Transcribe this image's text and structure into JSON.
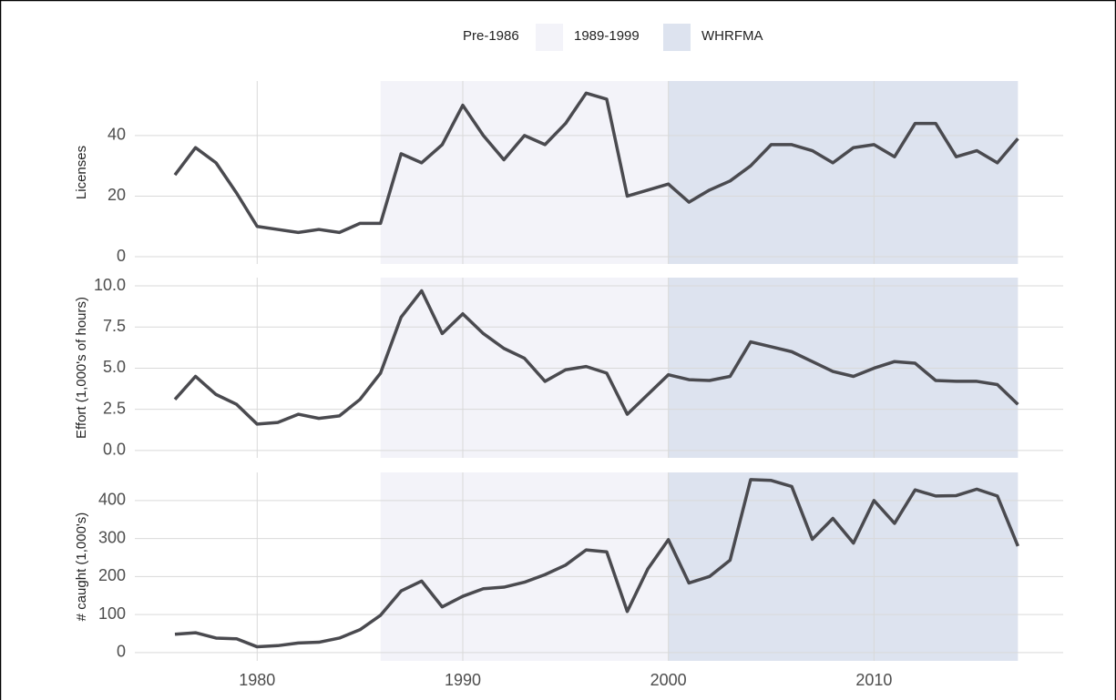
{
  "periods": [
    {
      "name": "Pre-1986",
      "color": "#ffffff",
      "range": [
        1976,
        1986
      ]
    },
    {
      "name": "1989-1999",
      "color": "#f3f3f9",
      "range": [
        1986,
        2000
      ]
    },
    {
      "name": "WHRFMA",
      "color": "#dde3ef",
      "range": [
        2000,
        2017
      ]
    }
  ],
  "chart_data": [
    {
      "type": "line",
      "y_label": "Licenses",
      "color": "#4a4a4f",
      "x": [
        1976,
        1977,
        1978,
        1979,
        1980,
        1981,
        1982,
        1983,
        1984,
        1985,
        1986,
        1987,
        1988,
        1989,
        1990,
        1991,
        1992,
        1993,
        1994,
        1995,
        1996,
        1997,
        1998,
        1999,
        2000,
        2001,
        2002,
        2003,
        2004,
        2005,
        2006,
        2007,
        2008,
        2009,
        2010,
        2011,
        2012,
        2013,
        2014,
        2015,
        2016,
        2017
      ],
      "values": [
        27,
        36,
        31,
        21,
        10,
        9,
        8,
        9,
        8,
        11,
        11,
        34,
        31,
        37,
        50,
        40,
        32,
        40,
        37,
        44,
        54,
        52,
        20,
        22,
        24,
        18,
        22,
        25,
        30,
        37,
        37,
        35,
        31,
        36,
        37,
        33,
        44,
        44,
        33,
        35,
        31,
        39
      ],
      "xlim": [
        1974.05,
        2019.2
      ],
      "xticks": [
        1980,
        1990,
        2000,
        2010
      ],
      "ylim": [
        -2.4,
        58
      ],
      "yticks": [
        0,
        20,
        40
      ],
      "grid": true
    },
    {
      "type": "line",
      "y_label": "Effort (1,000's of hours)",
      "color": "#4a4a4f",
      "x": [
        1976,
        1977,
        1978,
        1979,
        1980,
        1981,
        1982,
        1983,
        1984,
        1985,
        1986,
        1987,
        1988,
        1989,
        1990,
        1991,
        1992,
        1993,
        1994,
        1995,
        1996,
        1997,
        1998,
        1999,
        2000,
        2001,
        2002,
        2003,
        2004,
        2005,
        2006,
        2007,
        2008,
        2009,
        2010,
        2011,
        2012,
        2013,
        2014,
        2015,
        2016,
        2017
      ],
      "values": [
        3.1,
        4.5,
        3.4,
        2.8,
        1.6,
        1.7,
        2.2,
        1.95,
        2.1,
        3.1,
        4.7,
        8.1,
        9.7,
        7.1,
        8.3,
        7.1,
        6.2,
        5.6,
        4.2,
        4.9,
        5.1,
        4.7,
        2.2,
        3.4,
        4.6,
        4.3,
        4.25,
        4.5,
        6.6,
        6.3,
        6.0,
        5.4,
        4.8,
        4.5,
        5.0,
        5.4,
        5.3,
        4.25,
        4.2,
        4.2,
        4.0,
        2.8
      ],
      "xlim": [
        1974.05,
        2019.2
      ],
      "xticks": [
        1980,
        1990,
        2000,
        2010
      ],
      "ylim": [
        -0.45,
        10.5
      ],
      "yticks": [
        {
          "value": 0,
          "label": "0.0"
        },
        {
          "value": 2.5,
          "label": "2.5"
        },
        {
          "value": 5,
          "label": "5.0"
        },
        {
          "value": 7.5,
          "label": "7.5"
        },
        {
          "value": 10,
          "label": "10.0"
        }
      ],
      "grid": true
    },
    {
      "type": "line",
      "y_label": "# caught (1,000's)",
      "color": "#4a4a4f",
      "x": [
        1976,
        1977,
        1978,
        1979,
        1980,
        1981,
        1982,
        1983,
        1984,
        1985,
        1986,
        1987,
        1988,
        1989,
        1990,
        1991,
        1992,
        1993,
        1994,
        1995,
        1996,
        1997,
        1998,
        1999,
        2000,
        2001,
        2002,
        2003,
        2004,
        2005,
        2006,
        2007,
        2008,
        2009,
        2010,
        2011,
        2012,
        2013,
        2014,
        2015,
        2016,
        2017
      ],
      "values": [
        48,
        52,
        38,
        36,
        15,
        18,
        25,
        27,
        38,
        60,
        98,
        162,
        188,
        120,
        148,
        168,
        172,
        185,
        205,
        230,
        270,
        265,
        108,
        220,
        297,
        183,
        200,
        243,
        455,
        453,
        437,
        298,
        353,
        288,
        400,
        340,
        428,
        412,
        413,
        430,
        412,
        280
      ],
      "xlim": [
        1974.05,
        2019.2
      ],
      "xticks": [
        1980,
        1990,
        2000,
        2010
      ],
      "ylim": [
        -22,
        474
      ],
      "yticks": [
        0,
        100,
        200,
        300,
        400
      ],
      "grid": true
    }
  ]
}
